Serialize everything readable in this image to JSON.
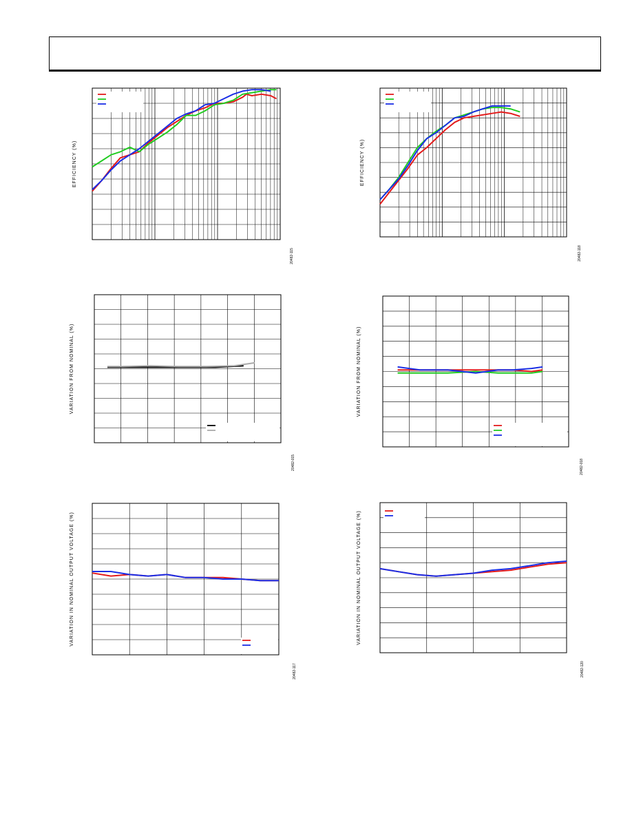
{
  "header": {
    "text": ""
  },
  "chart_data": [
    {
      "id": "c1",
      "type": "line",
      "xscale": "log",
      "ylabel": "EFFICIENCY (%)",
      "figure_id": "20482-115",
      "legend": "top-left",
      "series": [
        {
          "color": "#e31b1b",
          "points": [
            [
              0,
              68
            ],
            [
              0.05,
              61
            ],
            [
              0.1,
              53
            ],
            [
              0.15,
              46
            ],
            [
              0.2,
              44
            ],
            [
              0.25,
              42
            ],
            [
              0.3,
              36
            ],
            [
              0.35,
              31
            ],
            [
              0.4,
              26
            ],
            [
              0.45,
              22
            ],
            [
              0.5,
              18
            ],
            [
              0.55,
              15
            ],
            [
              0.6,
              13
            ],
            [
              0.65,
              10
            ],
            [
              0.7,
              10
            ],
            [
              0.75,
              9
            ],
            [
              0.8,
              6
            ],
            [
              0.82,
              4
            ],
            [
              0.85,
              5
            ],
            [
              0.9,
              4
            ],
            [
              0.95,
              5
            ],
            [
              0.98,
              7
            ]
          ]
        },
        {
          "color": "#22cc22",
          "points": [
            [
              0,
              52
            ],
            [
              0.05,
              48
            ],
            [
              0.1,
              44
            ],
            [
              0.15,
              42
            ],
            [
              0.2,
              39
            ],
            [
              0.25,
              42
            ],
            [
              0.3,
              37
            ],
            [
              0.35,
              33
            ],
            [
              0.4,
              29
            ],
            [
              0.45,
              24
            ],
            [
              0.5,
              18
            ],
            [
              0.55,
              18
            ],
            [
              0.6,
              15
            ],
            [
              0.65,
              11
            ],
            [
              0.7,
              10
            ],
            [
              0.75,
              8
            ],
            [
              0.8,
              4
            ],
            [
              0.85,
              3
            ],
            [
              0.9,
              2
            ],
            [
              0.95,
              1
            ],
            [
              0.98,
              1
            ]
          ]
        },
        {
          "color": "#1a2ee6",
          "points": [
            [
              0,
              67
            ],
            [
              0.05,
              61
            ],
            [
              0.1,
              54
            ],
            [
              0.15,
              48
            ],
            [
              0.2,
              44
            ],
            [
              0.25,
              40
            ],
            [
              0.3,
              35
            ],
            [
              0.35,
              30
            ],
            [
              0.4,
              25
            ],
            [
              0.45,
              20
            ],
            [
              0.5,
              17
            ],
            [
              0.55,
              15
            ],
            [
              0.6,
              11
            ],
            [
              0.65,
              10
            ],
            [
              0.7,
              7
            ],
            [
              0.75,
              4
            ],
            [
              0.8,
              2
            ],
            [
              0.85,
              1
            ],
            [
              0.9,
              1
            ],
            [
              0.95,
              2
            ]
          ]
        }
      ]
    },
    {
      "id": "c2",
      "type": "line",
      "xscale": "log",
      "ylabel": "EFFICIENCY (%)",
      "figure_id": "20482-118",
      "legend": "top-left",
      "series": [
        {
          "color": "#e31b1b",
          "points": [
            [
              0,
              78
            ],
            [
              0.05,
              70
            ],
            [
              0.1,
              62
            ],
            [
              0.15,
              54
            ],
            [
              0.2,
              45
            ],
            [
              0.25,
              40
            ],
            [
              0.3,
              34
            ],
            [
              0.35,
              28
            ],
            [
              0.4,
              23
            ],
            [
              0.45,
              20
            ],
            [
              0.5,
              19
            ],
            [
              0.55,
              18
            ],
            [
              0.6,
              17
            ],
            [
              0.65,
              16
            ],
            [
              0.7,
              17
            ],
            [
              0.75,
              19
            ]
          ]
        },
        {
          "color": "#22cc22",
          "points": [
            [
              0,
              75
            ],
            [
              0.05,
              68
            ],
            [
              0.1,
              60
            ],
            [
              0.15,
              50
            ],
            [
              0.2,
              40
            ],
            [
              0.25,
              34
            ],
            [
              0.3,
              29
            ],
            [
              0.35,
              25
            ],
            [
              0.4,
              20
            ],
            [
              0.45,
              18
            ],
            [
              0.5,
              16
            ],
            [
              0.55,
              14
            ],
            [
              0.6,
              13
            ],
            [
              0.65,
              13
            ],
            [
              0.7,
              14
            ],
            [
              0.75,
              16
            ]
          ]
        },
        {
          "color": "#1a2ee6",
          "points": [
            [
              0,
              75
            ],
            [
              0.05,
              68
            ],
            [
              0.1,
              61
            ],
            [
              0.15,
              52
            ],
            [
              0.2,
              42
            ],
            [
              0.25,
              34
            ],
            [
              0.3,
              30
            ],
            [
              0.35,
              25
            ],
            [
              0.4,
              20
            ],
            [
              0.45,
              19
            ],
            [
              0.5,
              16
            ],
            [
              0.55,
              14
            ],
            [
              0.6,
              12
            ],
            [
              0.65,
              12
            ],
            [
              0.7,
              12
            ]
          ]
        }
      ]
    },
    {
      "id": "c3",
      "type": "line",
      "ylabel": "VARIATION FROM NOMINAL (%)",
      "figure_id": "20482-015",
      "legend": "bottom-right",
      "series": [
        {
          "color": "#000000",
          "points": [
            [
              0.07,
              49
            ],
            [
              0.2,
              49
            ],
            [
              0.35,
              49
            ],
            [
              0.5,
              49
            ],
            [
              0.65,
              49
            ],
            [
              0.8,
              48
            ]
          ]
        },
        {
          "color": "#aaaaaa",
          "points": [
            [
              0.07,
              48.5
            ],
            [
              0.15,
              48.5
            ],
            [
              0.3,
              48
            ],
            [
              0.45,
              48.5
            ],
            [
              0.6,
              48.5
            ],
            [
              0.75,
              48
            ],
            [
              0.86,
              46
            ]
          ]
        }
      ]
    },
    {
      "id": "c4",
      "type": "line",
      "ylabel": "VARIATION FROM NOMINAL (%)",
      "figure_id": "20482-018",
      "legend": "bottom-right",
      "series": [
        {
          "color": "#e31b1b",
          "points": [
            [
              0.08,
              49
            ],
            [
              0.2,
              49
            ],
            [
              0.35,
              49
            ],
            [
              0.5,
              49
            ],
            [
              0.62,
              49
            ],
            [
              0.7,
              49
            ],
            [
              0.8,
              50
            ],
            [
              0.86,
              49
            ]
          ]
        },
        {
          "color": "#22cc22",
          "points": [
            [
              0.08,
              51
            ],
            [
              0.2,
              51
            ],
            [
              0.35,
              51
            ],
            [
              0.5,
              50
            ],
            [
              0.62,
              51
            ],
            [
              0.7,
              51
            ],
            [
              0.8,
              51
            ],
            [
              0.86,
              50
            ]
          ]
        },
        {
          "color": "#1a2ee6",
          "points": [
            [
              0.08,
              47
            ],
            [
              0.2,
              49
            ],
            [
              0.35,
              49
            ],
            [
              0.5,
              51
            ],
            [
              0.62,
              49
            ],
            [
              0.7,
              49
            ],
            [
              0.8,
              48
            ],
            [
              0.86,
              47
            ]
          ]
        }
      ]
    },
    {
      "id": "c5",
      "type": "line",
      "ylabel": "VARIATION IN NOMINAL OUTPUT VOLTAGE (%)",
      "figure_id": "20482-117",
      "legend": "bottom-right",
      "series": [
        {
          "color": "#e31b1b",
          "points": [
            [
              0,
              46
            ],
            [
              0.1,
              48
            ],
            [
              0.2,
              47
            ],
            [
              0.3,
              48
            ],
            [
              0.4,
              47
            ],
            [
              0.5,
              49
            ],
            [
              0.6,
              49
            ],
            [
              0.7,
              49
            ],
            [
              0.8,
              50
            ],
            [
              0.9,
              51
            ],
            [
              1,
              51
            ]
          ]
        },
        {
          "color": "#1a2ee6",
          "points": [
            [
              0,
              45
            ],
            [
              0.1,
              45
            ],
            [
              0.2,
              47
            ],
            [
              0.3,
              48
            ],
            [
              0.4,
              47
            ],
            [
              0.5,
              49
            ],
            [
              0.6,
              49
            ],
            [
              0.7,
              50
            ],
            [
              0.8,
              50
            ],
            [
              0.9,
              51
            ],
            [
              1,
              51
            ]
          ]
        }
      ]
    },
    {
      "id": "c6",
      "type": "line",
      "ylabel": "VARIATION IN NOMINAL OUTPUT VOLTAGE (%)",
      "figure_id": "20482-120",
      "legend": "top-left",
      "series": [
        {
          "color": "#e31b1b",
          "points": [
            [
              0,
              44
            ],
            [
              0.1,
              46
            ],
            [
              0.2,
              48
            ],
            [
              0.3,
              49
            ],
            [
              0.4,
              48
            ],
            [
              0.5,
              47
            ],
            [
              0.6,
              46
            ],
            [
              0.7,
              45
            ],
            [
              0.8,
              43
            ],
            [
              0.9,
              41
            ],
            [
              1,
              40
            ]
          ]
        },
        {
          "color": "#1a2ee6",
          "points": [
            [
              0,
              44
            ],
            [
              0.1,
              46
            ],
            [
              0.2,
              48
            ],
            [
              0.3,
              49
            ],
            [
              0.4,
              48
            ],
            [
              0.5,
              47
            ],
            [
              0.6,
              45
            ],
            [
              0.7,
              44
            ],
            [
              0.8,
              42
            ],
            [
              0.9,
              40
            ],
            [
              1,
              39
            ]
          ]
        }
      ]
    }
  ]
}
